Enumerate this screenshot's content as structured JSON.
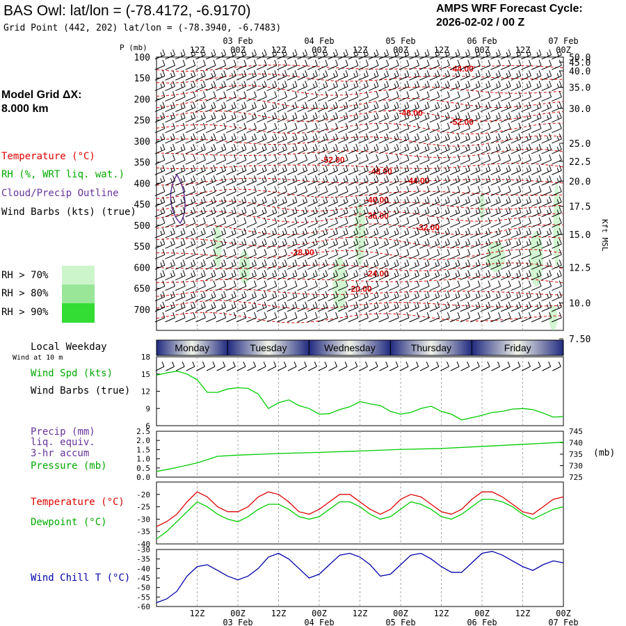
{
  "header": {
    "title": "BAS Owl:  lat/lon = (-78.4172, -6.9170)",
    "subtitle": "Grid Point (442, 202) lat/lon = (-78.3940, -6.7483)",
    "cycle_line1": "AMPS WRF Forecast Cycle:",
    "cycle_line2": "2026-02-02 / 00  Z"
  },
  "left_panel": {
    "grid_label_line1": "Model Grid ΔX:",
    "grid_label_line2": " 8.000 km",
    "legend_temperature": "Temperature (°C)",
    "legend_rh": "RH (%, WRT liq. wat.)",
    "legend_cloud": "Cloud/Precip Outline",
    "legend_wind": "Wind Barbs (kts) (true)",
    "rh_levels": [
      {
        "label": "RH > 70%",
        "color": "#ccf5cc"
      },
      {
        "label": "RH > 80%",
        "color": "#99e699"
      },
      {
        "label": "RH > 90%",
        "color": "#33dd33"
      }
    ]
  },
  "colors": {
    "temperature": "#dd0000",
    "dewpoint": "#00cc00",
    "wind_speed": "#00cc00",
    "pressure": "#00cc00",
    "precip": "#6633aa",
    "wind_chill": "#0000aa",
    "cloud_outline": "#663399",
    "day_bar_dark": "#222a80",
    "day_bar_light": "#f0f2e8"
  },
  "time_axis": {
    "top_ticks": [
      "12Z",
      "00Z",
      "12Z",
      "00Z",
      "12Z",
      "00Z",
      "12Z",
      "00Z",
      "12Z",
      "00Z"
    ],
    "date_labels": [
      "03 Feb",
      "04 Feb",
      "05 Feb",
      "06 Feb",
      "07 Feb"
    ],
    "days": [
      "Monday",
      "Tuesday",
      "Wednesday",
      "Thursday",
      "Friday"
    ]
  },
  "chart_data": [
    {
      "type": "cross-section",
      "ylabel": "P (mb)",
      "right_axis_label": "Kft MSL",
      "pressure_ticks": [
        "100",
        "150",
        "200",
        "250",
        "300",
        "350",
        "400",
        "450",
        "500",
        "550",
        "600",
        "650",
        "700"
      ],
      "height_ticks": [
        "50.0",
        "45.0",
        "40.0",
        "35.0",
        "30.0",
        "25.0",
        "22.5",
        "20.0",
        "17.5",
        "15.0",
        "12.5",
        "10.0",
        "7.50"
      ],
      "height_tick_pressures": [
        100,
        112,
        133,
        172,
        222,
        305,
        348,
        395,
        455,
        522,
        600,
        685,
        770
      ],
      "temperature_contours": [
        {
          "label": "-44.00",
          "p": 128,
          "hour": 90
        },
        {
          "label": "-48.00",
          "p": 233,
          "hour": 75
        },
        {
          "label": "-52.00",
          "p": 255,
          "hour": 90
        },
        {
          "label": "-52.00",
          "p": 345,
          "hour": 52
        },
        {
          "label": "-48.00",
          "p": 372,
          "hour": 66
        },
        {
          "label": "-44.00",
          "p": 394,
          "hour": 77
        },
        {
          "label": "-40.00",
          "p": 440,
          "hour": 65
        },
        {
          "label": "-36.00",
          "p": 478,
          "hour": 65
        },
        {
          "label": "-32.00",
          "p": 505,
          "hour": 80
        },
        {
          "label": "-28.00",
          "p": 565,
          "hour": 43
        },
        {
          "label": "-24.00",
          "p": 615,
          "hour": 65
        },
        {
          "label": "-20.00",
          "p": 652,
          "hour": 60
        }
      ]
    },
    {
      "type": "line",
      "ylabel": "Wind Spd (kts)",
      "sublabel": "Wind at 10 m",
      "header_label": "Local Weekday",
      "barb_label": "Wind Barbs (true)",
      "y_ticks": [
        "18",
        "15",
        "12",
        "9",
        "6"
      ],
      "ylim": [
        6,
        18
      ],
      "x": [
        0,
        3,
        6,
        9,
        12,
        15,
        18,
        21,
        24,
        27,
        30,
        33,
        36,
        39,
        42,
        45,
        48,
        51,
        54,
        57,
        60,
        63,
        66,
        69,
        72,
        75,
        78,
        81,
        84,
        87,
        90,
        93,
        96,
        99,
        102,
        105,
        108,
        111,
        114,
        117,
        120
      ],
      "series": [
        {
          "name": "Wind Spd (kts)",
          "values": [
            14.8,
            15.2,
            15.5,
            15.0,
            14.0,
            11.8,
            11.8,
            12.4,
            12.6,
            12.5,
            11.5,
            9.0,
            10.0,
            10.5,
            9.5,
            9.0,
            8.0,
            8.1,
            8.8,
            9.3,
            10.2,
            9.8,
            9.5,
            8.5,
            8.0,
            8.3,
            9.0,
            9.4,
            8.5,
            8.0,
            7.0,
            7.4,
            7.8,
            8.3,
            8.5,
            8.9,
            9.0,
            8.8,
            8.2,
            7.5,
            7.6
          ]
        }
      ]
    },
    {
      "type": "line",
      "labels": [
        "Precip (mm)",
        "liq. equiv.",
        "3-hr accum",
        "Pressure (mb)"
      ],
      "y_ticks_left": [
        "2.5",
        "2.0",
        "1.5",
        "1.0",
        "0.5",
        "0.0"
      ],
      "y_ticks_right": [
        "745",
        "740",
        "735",
        "730",
        "725"
      ],
      "right_unit": "(mb)",
      "ylim_left": [
        0,
        2.5
      ],
      "ylim_right": [
        725,
        745
      ],
      "x": [
        0,
        6,
        12,
        18,
        24,
        36,
        48,
        60,
        72,
        84,
        96,
        108,
        120
      ],
      "series": [
        {
          "name": "Pressure (mb)",
          "values": [
            727.5,
            729.2,
            731.2,
            734.1,
            734.6,
            735.3,
            735.8,
            736.4,
            737.1,
            737.5,
            738.4,
            739.3,
            740.2
          ]
        }
      ]
    },
    {
      "type": "line",
      "labels": [
        "Temperature (°C)",
        "Dewpoint (°C)"
      ],
      "y_ticks": [
        "-20",
        "-25",
        "-30",
        "-35",
        "-40"
      ],
      "ylim": [
        -40,
        -15
      ],
      "x": [
        0,
        3,
        6,
        9,
        12,
        15,
        18,
        21,
        24,
        27,
        30,
        33,
        36,
        39,
        42,
        45,
        48,
        51,
        54,
        57,
        60,
        63,
        66,
        69,
        72,
        75,
        78,
        81,
        84,
        87,
        90,
        93,
        96,
        99,
        102,
        105,
        108,
        111,
        114,
        117,
        120
      ],
      "series": [
        {
          "name": "Temperature (°C)",
          "values": [
            -33,
            -31,
            -28,
            -23,
            -19,
            -21,
            -25,
            -27,
            -27,
            -25,
            -21,
            -19,
            -20,
            -23,
            -27,
            -28,
            -26,
            -23,
            -20,
            -20,
            -23,
            -26,
            -28,
            -26,
            -22,
            -20,
            -21,
            -24,
            -27,
            -28,
            -26,
            -22,
            -19,
            -19,
            -21,
            -24,
            -27,
            -28,
            -25,
            -22,
            -21
          ]
        },
        {
          "name": "Dewpoint (°C)",
          "values": [
            -38,
            -35,
            -31,
            -27,
            -23,
            -25,
            -28,
            -30,
            -31,
            -29,
            -26,
            -24,
            -24,
            -26,
            -29,
            -30,
            -29,
            -26,
            -23,
            -23,
            -25,
            -28,
            -30,
            -29,
            -26,
            -23,
            -24,
            -26,
            -29,
            -30,
            -28,
            -25,
            -22,
            -22,
            -23,
            -25,
            -28,
            -30,
            -28,
            -26,
            -25
          ]
        }
      ]
    },
    {
      "type": "line",
      "ylabel": "Wind Chill T (°C)",
      "y_ticks": [
        "-30",
        "-35",
        "-40",
        "-45",
        "-50",
        "-55",
        "-60"
      ],
      "ylim": [
        -60,
        -30
      ],
      "x": [
        0,
        3,
        6,
        9,
        12,
        15,
        18,
        21,
        24,
        27,
        30,
        33,
        36,
        39,
        42,
        45,
        48,
        51,
        54,
        57,
        60,
        63,
        66,
        69,
        72,
        75,
        78,
        81,
        84,
        87,
        90,
        93,
        96,
        99,
        102,
        105,
        108,
        111,
        114,
        117,
        120
      ],
      "series": [
        {
          "name": "Wind Chill T (°C)",
          "values": [
            -58,
            -56,
            -52,
            -44,
            -39,
            -38,
            -41,
            -44,
            -46,
            -44,
            -40,
            -34,
            -32,
            -35,
            -40,
            -45,
            -43,
            -38,
            -33,
            -32,
            -34,
            -38,
            -44,
            -43,
            -38,
            -33,
            -32,
            -35,
            -39,
            -42,
            -42,
            -37,
            -32,
            -31,
            -33,
            -36,
            -39,
            -41,
            -38,
            -36,
            -37
          ]
        }
      ]
    }
  ]
}
